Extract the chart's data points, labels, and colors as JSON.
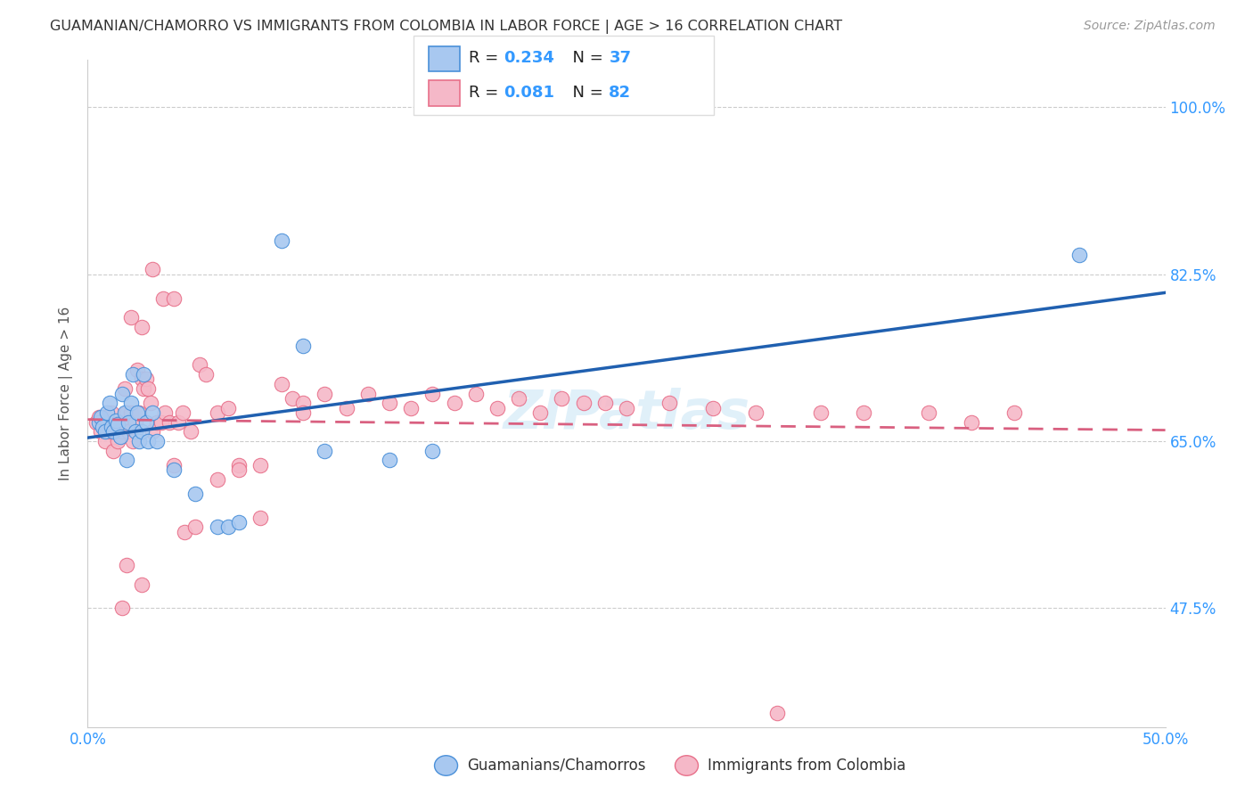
{
  "title": "GUAMANIAN/CHAMORRO VS IMMIGRANTS FROM COLOMBIA IN LABOR FORCE | AGE > 16 CORRELATION CHART",
  "source": "Source: ZipAtlas.com",
  "ylabel": "In Labor Force | Age > 16",
  "xlim": [
    0.0,
    0.5
  ],
  "ylim": [
    0.35,
    1.05
  ],
  "ytick_positions": [
    0.475,
    0.65,
    0.825,
    1.0
  ],
  "ytick_labels": [
    "47.5%",
    "65.0%",
    "82.5%",
    "100.0%"
  ],
  "xtick_positions": [
    0.0,
    0.1,
    0.2,
    0.3,
    0.4,
    0.5
  ],
  "xtick_labels": [
    "0.0%",
    "",
    "",
    "",
    "",
    "50.0%"
  ],
  "blue_R": 0.234,
  "blue_N": 37,
  "pink_R": 0.081,
  "pink_N": 82,
  "blue_color": "#a8c8f0",
  "pink_color": "#f5b8c8",
  "blue_edge_color": "#4a90d9",
  "pink_edge_color": "#e8708a",
  "blue_line_color": "#2060b0",
  "pink_line_color": "#d96080",
  "tick_label_color": "#3399ff",
  "axis_label_color": "#555555",
  "title_color": "#333333",
  "watermark": "ZIPatlas",
  "blue_scatter_x": [
    0.005,
    0.006,
    0.007,
    0.008,
    0.009,
    0.01,
    0.011,
    0.012,
    0.013,
    0.014,
    0.015,
    0.016,
    0.017,
    0.018,
    0.019,
    0.02,
    0.021,
    0.022,
    0.023,
    0.024,
    0.025,
    0.026,
    0.027,
    0.028,
    0.03,
    0.032,
    0.04,
    0.05,
    0.06,
    0.065,
    0.07,
    0.09,
    0.1,
    0.11,
    0.14,
    0.16,
    0.46
  ],
  "blue_scatter_y": [
    0.67,
    0.675,
    0.665,
    0.66,
    0.68,
    0.69,
    0.665,
    0.66,
    0.672,
    0.668,
    0.655,
    0.7,
    0.68,
    0.63,
    0.67,
    0.69,
    0.72,
    0.66,
    0.68,
    0.65,
    0.66,
    0.72,
    0.67,
    0.65,
    0.68,
    0.65,
    0.62,
    0.595,
    0.56,
    0.56,
    0.565,
    0.86,
    0.75,
    0.64,
    0.63,
    0.64,
    0.845
  ],
  "pink_scatter_x": [
    0.004,
    0.005,
    0.006,
    0.007,
    0.008,
    0.009,
    0.01,
    0.011,
    0.012,
    0.013,
    0.014,
    0.015,
    0.016,
    0.017,
    0.018,
    0.019,
    0.02,
    0.021,
    0.022,
    0.023,
    0.024,
    0.025,
    0.026,
    0.027,
    0.028,
    0.029,
    0.03,
    0.032,
    0.034,
    0.036,
    0.038,
    0.04,
    0.042,
    0.044,
    0.048,
    0.052,
    0.055,
    0.06,
    0.065,
    0.07,
    0.08,
    0.09,
    0.095,
    0.1,
    0.11,
    0.12,
    0.13,
    0.14,
    0.15,
    0.16,
    0.17,
    0.18,
    0.19,
    0.2,
    0.21,
    0.22,
    0.23,
    0.24,
    0.25,
    0.27,
    0.29,
    0.31,
    0.34,
    0.36,
    0.39,
    0.41,
    0.43,
    0.02,
    0.025,
    0.03,
    0.035,
    0.04,
    0.045,
    0.05,
    0.06,
    0.07,
    0.08,
    0.1,
    0.016,
    0.018,
    0.025,
    0.32
  ],
  "pink_scatter_y": [
    0.67,
    0.675,
    0.66,
    0.675,
    0.65,
    0.67,
    0.66,
    0.68,
    0.64,
    0.66,
    0.65,
    0.67,
    0.66,
    0.705,
    0.68,
    0.66,
    0.68,
    0.65,
    0.67,
    0.725,
    0.68,
    0.715,
    0.705,
    0.715,
    0.705,
    0.69,
    0.66,
    0.67,
    0.67,
    0.68,
    0.67,
    0.625,
    0.67,
    0.68,
    0.66,
    0.73,
    0.72,
    0.68,
    0.685,
    0.625,
    0.625,
    0.71,
    0.695,
    0.69,
    0.7,
    0.685,
    0.7,
    0.69,
    0.685,
    0.7,
    0.69,
    0.7,
    0.685,
    0.695,
    0.68,
    0.695,
    0.69,
    0.69,
    0.685,
    0.69,
    0.685,
    0.68,
    0.68,
    0.68,
    0.68,
    0.67,
    0.68,
    0.78,
    0.77,
    0.83,
    0.8,
    0.8,
    0.555,
    0.56,
    0.61,
    0.62,
    0.57,
    0.68,
    0.475,
    0.52,
    0.5,
    0.365
  ]
}
